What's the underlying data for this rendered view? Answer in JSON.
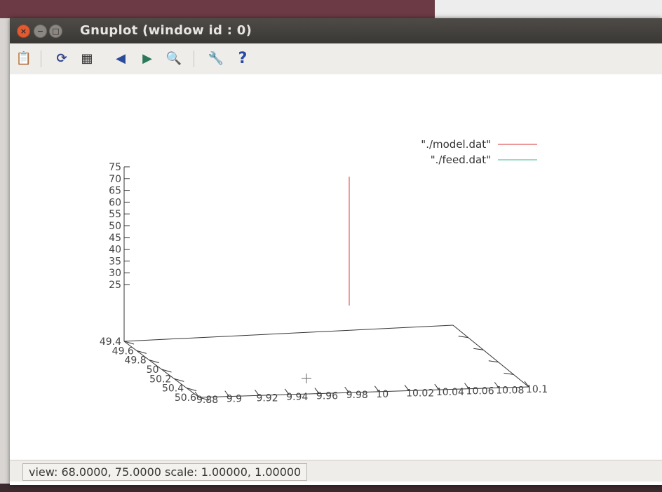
{
  "window": {
    "title": "Gnuplot (window id : 0)",
    "buttons": {
      "close": "×",
      "minimize": "−",
      "maximize": "□"
    }
  },
  "toolbar": {
    "items": [
      {
        "name": "copy-to-clipboard-icon",
        "glyph": "📋"
      },
      {
        "name": "replot-icon",
        "glyph": "⟳"
      },
      {
        "name": "grid-icon",
        "glyph": "▦"
      },
      {
        "name": "zoom-previous-icon",
        "glyph": "◀"
      },
      {
        "name": "zoom-next-icon",
        "glyph": "▶"
      },
      {
        "name": "autoscale-icon",
        "glyph": "🔍"
      },
      {
        "name": "settings-icon",
        "glyph": "🔧"
      },
      {
        "name": "help-icon",
        "glyph": "?"
      }
    ]
  },
  "chart_data": {
    "type": "line",
    "subtype": "3d",
    "z_ticks": [
      "75",
      "70",
      "65",
      "60",
      "55",
      "50",
      "45",
      "40",
      "35",
      "30",
      "25"
    ],
    "y_ticks": [
      "49.4",
      "49.6",
      "49.8",
      "50",
      "50.2",
      "50.4",
      "50.6"
    ],
    "x_ticks": [
      "9.88",
      "9.9",
      "9.92",
      "9.94",
      "9.96",
      "9.98",
      "10",
      "10.02",
      "10.04",
      "10.06",
      "10.08",
      "10.1"
    ],
    "zlim": [
      25,
      75
    ],
    "ylim": [
      49.4,
      50.6
    ],
    "xlim": [
      9.88,
      10.1
    ],
    "legend_placement": "top-right",
    "series": [
      {
        "name": "\"./model.dat\"",
        "color": "#e05a5a"
      },
      {
        "name": "\"./feed.dat\"",
        "color": "#5ac8a0"
      }
    ],
    "model_segment": {
      "x": 10.0,
      "y": 50.0,
      "z": [
        25,
        75
      ]
    }
  },
  "status": {
    "text": "view: 68.0000, 75.0000  scale: 1.00000, 1.00000"
  }
}
